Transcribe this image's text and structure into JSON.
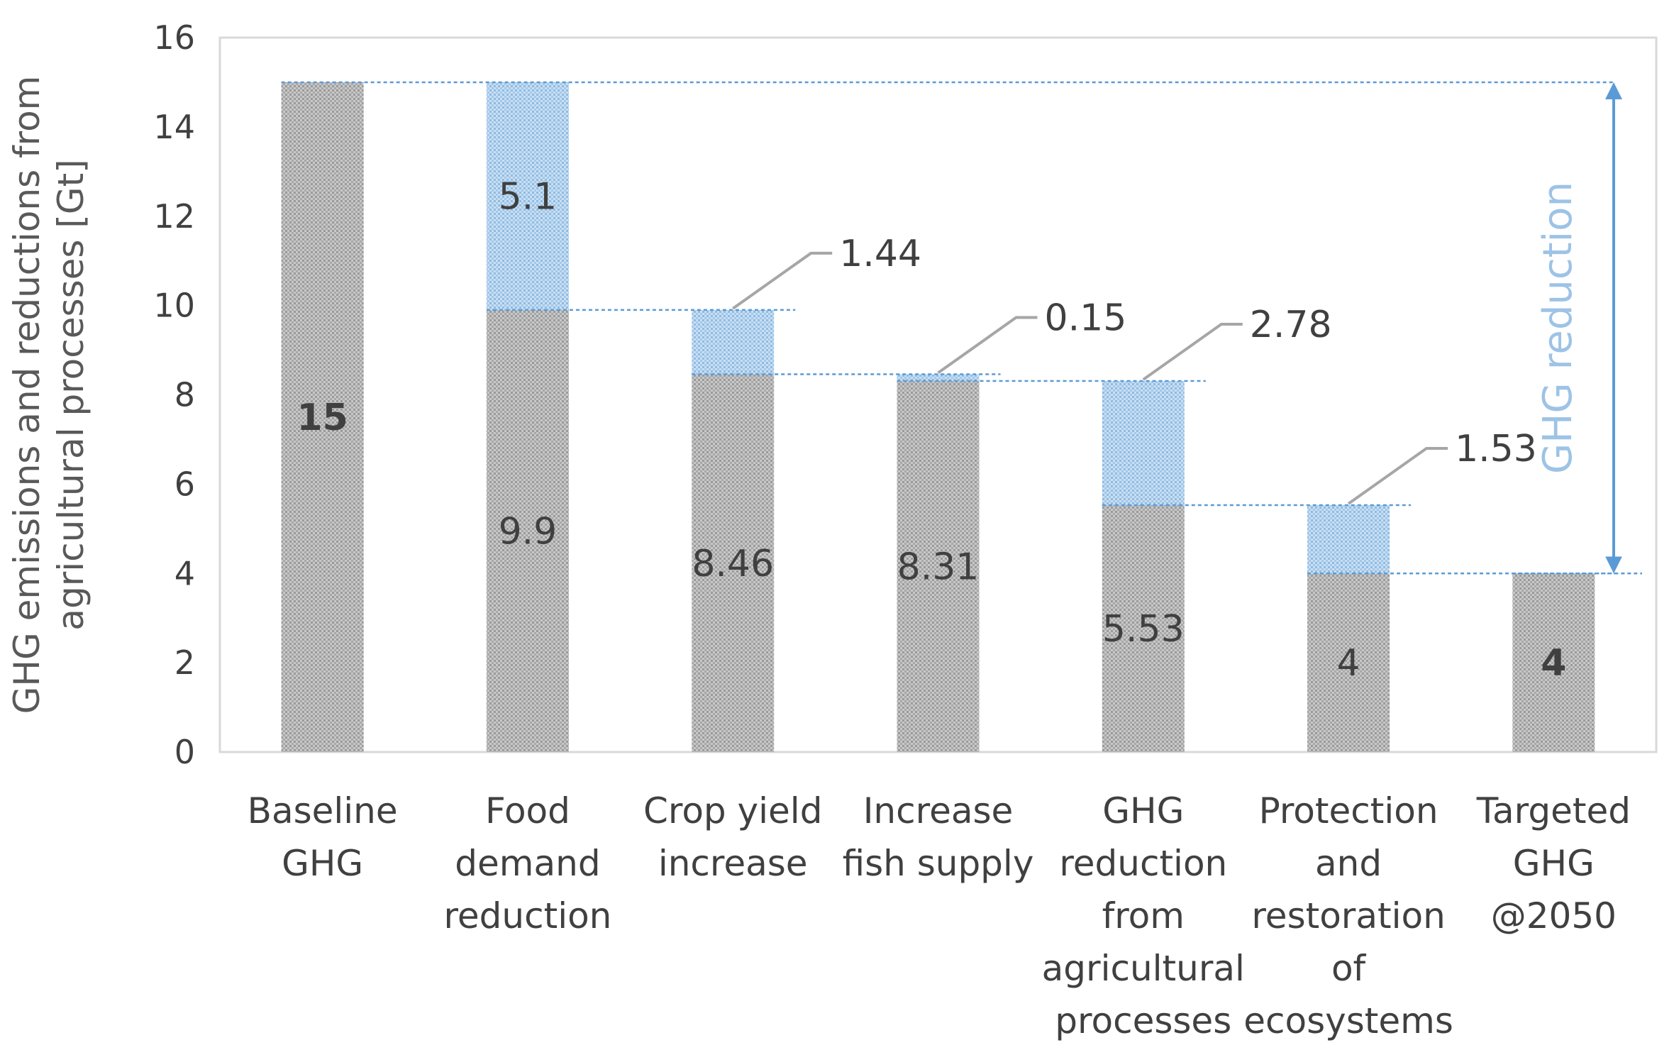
{
  "chart_data": {
    "type": "bar",
    "subtype": "waterfall",
    "title": "",
    "xlabel": "",
    "ylabel": "GHG emissions and reductions from agricultural processes [Gt]",
    "ylabel_lines": [
      "GHG emissions and reductions from",
      "agricultural processes [Gt]"
    ],
    "ylim": [
      0,
      16
    ],
    "yticks": [
      "0",
      "2",
      "4",
      "6",
      "8",
      "10",
      "12",
      "14",
      "16"
    ],
    "ytick_values": [
      0,
      2,
      4,
      6,
      8,
      10,
      12,
      14,
      16
    ],
    "categories": [
      "Baseline GHG",
      "Food demand reduction",
      "Crop yield increase",
      "Increase fish supply",
      "GHG reduction from agricultural processes",
      "Protection and restoration of ecosystems",
      "Targeted GHG @2050"
    ],
    "category_lines": [
      [
        "Baseline",
        "GHG"
      ],
      [
        "Food",
        "demand",
        "reduction"
      ],
      [
        "Crop yield",
        "increase"
      ],
      [
        "Increase",
        "fish supply"
      ],
      [
        "GHG",
        "reduction",
        "from",
        "agricultural",
        "processes"
      ],
      [
        "Protection",
        "and",
        "restoration",
        "of",
        "ecosystems"
      ],
      [
        "Targeted",
        "GHG",
        "@2050"
      ]
    ],
    "series": [
      {
        "name": "Remaining emissions",
        "color": "#b4b4b4",
        "values": [
          15,
          9.9,
          8.46,
          8.31,
          5.53,
          4,
          4
        ],
        "labels": [
          "15",
          "9.9",
          "8.46",
          "8.31",
          "5.53",
          "4",
          "4"
        ],
        "bold": [
          true,
          false,
          false,
          false,
          false,
          false,
          true
        ]
      },
      {
        "name": "Reduction",
        "color": "#9dc3e6",
        "values": [
          0,
          5.1,
          1.44,
          0.15,
          2.78,
          1.53,
          0
        ],
        "labels": [
          "",
          "5.1",
          "1.44",
          "0.15",
          "2.78",
          "1.53",
          ""
        ],
        "label_style": [
          "none",
          "inside",
          "callout",
          "callout",
          "callout",
          "callout",
          "none"
        ]
      }
    ],
    "annotation": "GHG reduction",
    "annotation_range": [
      4,
      15
    ]
  }
}
